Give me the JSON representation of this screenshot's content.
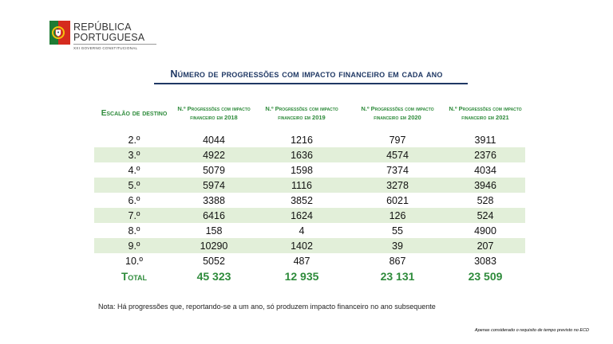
{
  "logo": {
    "line1": "REPÚBLICA",
    "line2": "PORTUGUESA",
    "sub": "XXI GOVERNO CONSTITUCIONAL",
    "emblem": "portuguese-coat-of-arms"
  },
  "title": "Número de progressões com impacto financeiro em cada ano",
  "table": {
    "headers": [
      "Escalão de destino",
      "N.º Progressões com impacto financeiro em 2018",
      "N.º Progressões com impacto financeiro em 2019",
      "N.º Progressões com impacto financeiro em 2020",
      "N.º Progressões com impacto financeiro em 2021"
    ],
    "rows": [
      [
        "2.º",
        "4044",
        "1216",
        "797",
        "3911"
      ],
      [
        "3.º",
        "4922",
        "1636",
        "4574",
        "2376"
      ],
      [
        "4.º",
        "5079",
        "1598",
        "7374",
        "4034"
      ],
      [
        "5.º",
        "5974",
        "1116",
        "3278",
        "3946"
      ],
      [
        "6.º",
        "3388",
        "3852",
        "6021",
        "528"
      ],
      [
        "7.º",
        "6416",
        "1624",
        "126",
        "524"
      ],
      [
        "8.º",
        "158",
        "4",
        "55",
        "4900"
      ],
      [
        "9.º",
        "10290",
        "1402",
        "39",
        "207"
      ],
      [
        "10.º",
        "5052",
        "487",
        "867",
        "3083"
      ]
    ],
    "total": [
      "Total",
      "45 323",
      "12 935",
      "23 131",
      "23 509"
    ]
  },
  "note": "Nota:  Há progressões que, reportando-se a um ano, só produzem impacto financeiro no ano subsequente",
  "footnote": "Apenas considerado o requisito de tempo previsto no ECD",
  "colors": {
    "header_green": "#2e8b3b",
    "row_band": "#e2efd9",
    "title_blue": "#1f3864"
  }
}
